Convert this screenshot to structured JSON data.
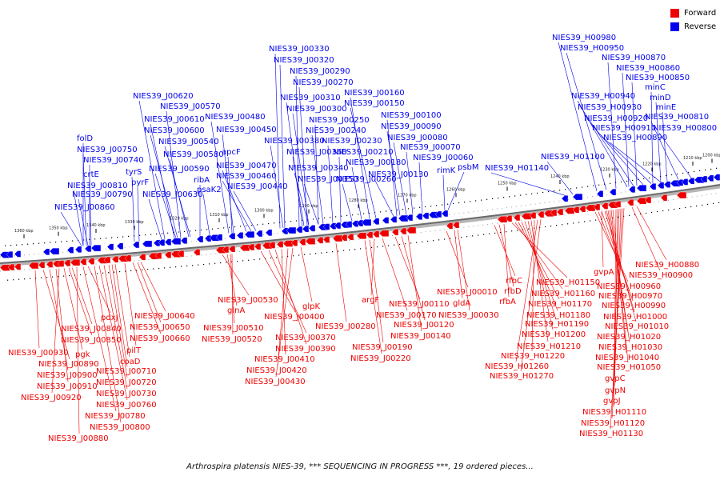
{
  "legend": {
    "forward_label": "Forward",
    "reverse_label": "Reverse",
    "forward_color": "#ee0000",
    "reverse_color": "#0000ee"
  },
  "caption": "Arthrospira platensis NIES-39, *** SEQUENCING IN PROGRESS ***, 19 ordered pieces...",
  "ticks": [
    "1360 kbp",
    "1350 kbp",
    "1340 kbp",
    "1330 kbp",
    "1320 kbp",
    "1310 kbp",
    "1300 kbp",
    "1290 kbp",
    "1280 kbp",
    "1270 kbp",
    "1260 kbp",
    "1250 kbp",
    "1240 kbp",
    "1230 kbp",
    "1220 kbp",
    "1210 kbp",
    "1200 kbp"
  ],
  "reverse_labels": [
    "folD",
    "NIES39_J00750",
    "NIES39_J00740",
    "crtE",
    "NIES39_J00810",
    "NIES39_J00790",
    "NIES39_J00860",
    "tyrS",
    "pyrF",
    "NIES39_J00620",
    "NIES39_J00570",
    "NIES39_J00610",
    "NIES39_J00600",
    "NIES39_J00540",
    "NIES39_J00580",
    "NIES39_J00590",
    "NIES39_J00630",
    "ribA",
    "psaK2",
    "apcF",
    "NIES39_J00480",
    "NIES39_J00450",
    "NIES39_J00470",
    "NIES39_J00460",
    "NIES39_J00440",
    "NIES39_J00330",
    "NIES39_J00320",
    "NIES39_J00290",
    "NIES39_J00270",
    "NIES39_J00310",
    "NIES39_J00300",
    "NIES39_J00250",
    "NIES39_J00240",
    "NIES39_J00230",
    "NIES39_J00380",
    "NIES39_J00360",
    "NIES39_J00210",
    "NIES39_J00340",
    "NIES39_J00350",
    "NIES39_J00260",
    "NIES39_J00180",
    "NIES39_J00160",
    "NIES39_J00150",
    "NIES39_J00100",
    "NIES39_J00090",
    "NIES39_J00080",
    "NIES39_J00070",
    "NIES39_J00060",
    "NIES39_J00130",
    "rimK",
    "psbM",
    "NIES39_H01140",
    "NIES39_H01100",
    "NIES39_H00980",
    "NIES39_H00950",
    "NIES39_H00870",
    "NIES39_H00860",
    "NIES39_H00850",
    "minC",
    "NIES39_H00940",
    "minD",
    "NIES39_H00930",
    "minE",
    "NIES39_H00920",
    "NIES39_H00810",
    "NIES39_H00910",
    "NIES39_H00800",
    "NIES39_H00890"
  ],
  "forward_labels": [
    "NIES39_J00930",
    "NIES39_J00890",
    "NIES39_J00900",
    "NIES39_J00910",
    "NIES39_J00920",
    "NIES39_J00880",
    "pgk",
    "NIES39_J00850",
    "NIES39_J00840",
    "pdxJ",
    "NIES39_J00780",
    "NIES39_J00800",
    "NIES39_J00760",
    "NIES39_J00730",
    "NIES39_J00720",
    "NIES39_J00710",
    "coaD",
    "pilT",
    "NIES39_J00660",
    "NIES39_J00650",
    "NIES39_J00640",
    "NIES39_J00530",
    "glnA",
    "NIES39_J00510",
    "NIES39_J00520",
    "NIES39_J00400",
    "NIES39_J00370",
    "NIES39_J00390",
    "NIES39_J00410",
    "NIES39_J00420",
    "NIES39_J00430",
    "glpK",
    "NIES39_J00280",
    "NIES39_J00190",
    "NIES39_J00220",
    "argF",
    "NIES39_J00170",
    "NIES39_J00110",
    "NIES39_J00120",
    "NIES39_J00140",
    "NIES39_J00010",
    "gldA",
    "NIES39_J00030",
    "rfbC",
    "rfbD",
    "rfbA",
    "NIES39_H01150",
    "NIES39_H01160",
    "NIES39_H01170",
    "NIES39_H01180",
    "NIES39_H01190",
    "NIES39_H01200",
    "NIES39_H01210",
    "NIES39_H01220",
    "NIES39_H01260",
    "NIES39_H01270",
    "gvpA",
    "NIES39_H00880",
    "NIES39_H00900",
    "NIES39_H00960",
    "NIES39_H00970",
    "NIES39_H00990",
    "NIES39_H01000",
    "NIES39_H01010",
    "NIES39_H01020",
    "NIES39_H01030",
    "NIES39_H01040",
    "NIES39_H01050",
    "gvpC",
    "gvpN",
    "gvpJ",
    "NIES39_H01110",
    "NIES39_H01120",
    "NIES39_H01130"
  ]
}
